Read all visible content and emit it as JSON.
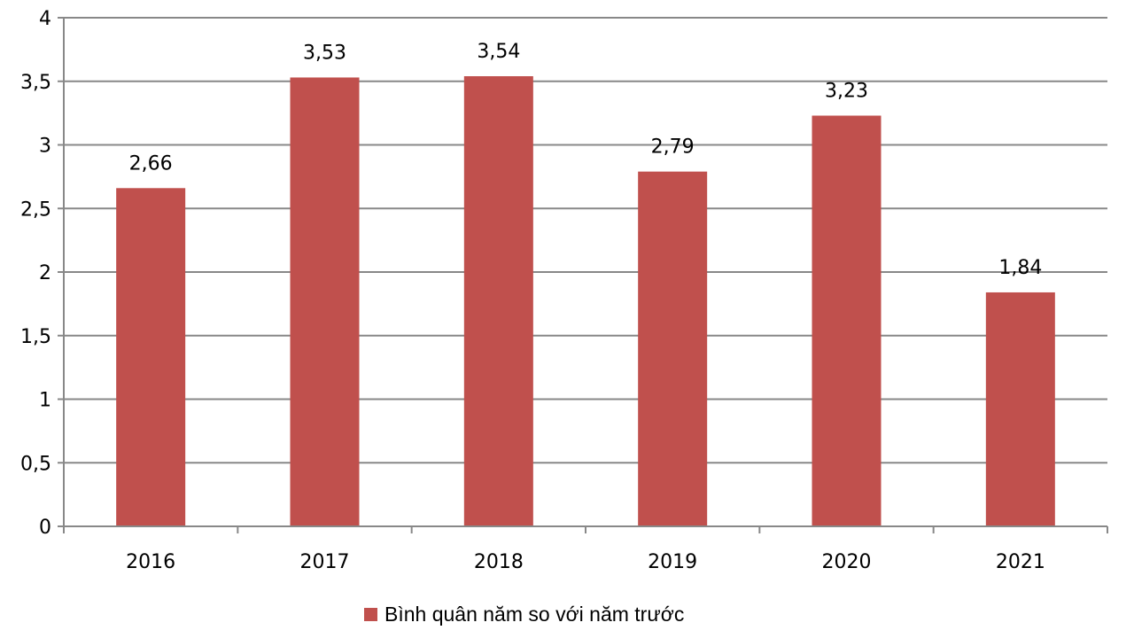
{
  "chart_data": {
    "type": "bar",
    "categories": [
      "2016",
      "2017",
      "2018",
      "2019",
      "2020",
      "2021"
    ],
    "series": [
      {
        "name": "Bình quân năm so với năm trước",
        "values": [
          2.66,
          3.53,
          3.54,
          2.79,
          3.23,
          1.84
        ],
        "value_labels": [
          "2,66",
          "3,53",
          "3,54",
          "2,79",
          "3,23",
          "1,84"
        ],
        "color": "#c0504d"
      }
    ],
    "ylim": [
      0,
      4
    ],
    "yticks": [
      0,
      0.5,
      1,
      1.5,
      2,
      2.5,
      3,
      3.5,
      4
    ],
    "ytick_labels": [
      "0",
      "0,5",
      "1",
      "1,5",
      "2",
      "2,5",
      "3",
      "3,5",
      "4"
    ],
    "grid": true,
    "grid_color": "#888888",
    "legend_position": "bottom"
  }
}
